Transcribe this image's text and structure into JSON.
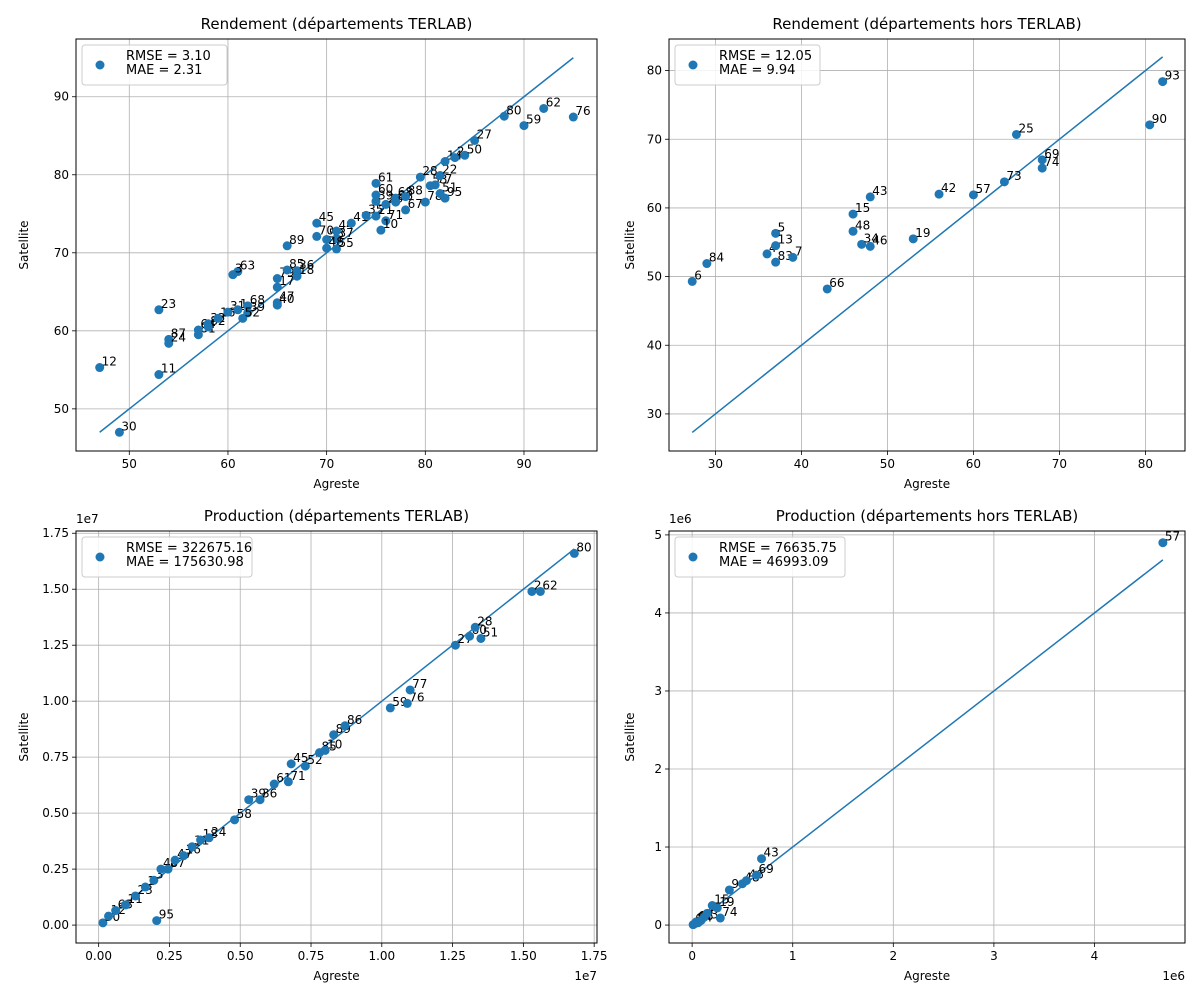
{
  "chart_data": [
    {
      "type": "scatter",
      "title": "Rendement (départements TERLAB)",
      "xlabel": "Agreste",
      "ylabel": "Satellite",
      "xlim": [
        44.6,
        97.4
      ],
      "ylim": [
        44.6,
        97.4
      ],
      "xticks": [
        "50",
        "60",
        "70",
        "80",
        "90"
      ],
      "yticks": [
        "50",
        "60",
        "70",
        "80",
        "90"
      ],
      "grid": true,
      "legend_position": "upper-left",
      "metrics": [
        "RMSE = 3.10",
        "MAE = 2.31"
      ],
      "color": "#1f77b4",
      "identity_line": [
        47,
        95
      ],
      "points": [
        {
          "label": "12",
          "x": 47,
          "y": 55.3
        },
        {
          "label": "30",
          "x": 49,
          "y": 47
        },
        {
          "label": "11",
          "x": 53,
          "y": 54.4
        },
        {
          "label": "23",
          "x": 53,
          "y": 62.7
        },
        {
          "label": "87",
          "x": 54,
          "y": 58.9
        },
        {
          "label": "24",
          "x": 54,
          "y": 58.4
        },
        {
          "label": "81",
          "x": 57,
          "y": 59.5
        },
        {
          "label": "64",
          "x": 57,
          "y": 60.1
        },
        {
          "label": "32",
          "x": 58,
          "y": 60.9
        },
        {
          "label": "82",
          "x": 58,
          "y": 60.5
        },
        {
          "label": "16",
          "x": 59,
          "y": 61.6
        },
        {
          "label": "31",
          "x": 60,
          "y": 62.4
        },
        {
          "label": "63",
          "x": 61,
          "y": 67.6
        },
        {
          "label": "3",
          "x": 60.5,
          "y": 67.2
        },
        {
          "label": "1",
          "x": 61,
          "y": 62.7
        },
        {
          "label": "68",
          "x": 62,
          "y": 63.2
        },
        {
          "label": "39",
          "x": 62,
          "y": 62.3
        },
        {
          "label": "52",
          "x": 61.5,
          "y": 61.6
        },
        {
          "label": "47",
          "x": 65,
          "y": 63.6
        },
        {
          "label": "40",
          "x": 65,
          "y": 63.3
        },
        {
          "label": "17",
          "x": 65,
          "y": 65.6
        },
        {
          "label": "79",
          "x": 65,
          "y": 66.7
        },
        {
          "label": "85",
          "x": 66,
          "y": 67.8
        },
        {
          "label": "18",
          "x": 67,
          "y": 67
        },
        {
          "label": "36",
          "x": 67,
          "y": 67.7
        },
        {
          "label": "89",
          "x": 66,
          "y": 70.9
        },
        {
          "label": "45",
          "x": 69,
          "y": 73.8
        },
        {
          "label": "70",
          "x": 69,
          "y": 72.1
        },
        {
          "label": "58",
          "x": 70,
          "y": 71.7
        },
        {
          "label": "37",
          "x": 71,
          "y": 71.8
        },
        {
          "label": "48",
          "x": 70,
          "y": 70.6
        },
        {
          "label": "55",
          "x": 71,
          "y": 70.5
        },
        {
          "label": "44",
          "x": 71,
          "y": 72.8
        },
        {
          "label": "41",
          "x": 72.5,
          "y": 73.8
        },
        {
          "label": "35",
          "x": 74,
          "y": 74.8
        },
        {
          "label": "21",
          "x": 75,
          "y": 74.7
        },
        {
          "label": "60",
          "x": 75,
          "y": 77.4
        },
        {
          "label": "61",
          "x": 75,
          "y": 78.9
        },
        {
          "label": "39",
          "x": 75,
          "y": 76.6
        },
        {
          "label": "71",
          "x": 76,
          "y": 74.1
        },
        {
          "label": "10",
          "x": 75.5,
          "y": 72.9
        },
        {
          "label": "26",
          "x": 76,
          "y": 76.2
        },
        {
          "label": "68",
          "x": 77,
          "y": 77
        },
        {
          "label": "86",
          "x": 77,
          "y": 76.5
        },
        {
          "label": "88",
          "x": 78,
          "y": 77.2
        },
        {
          "label": "67",
          "x": 78,
          "y": 75.5
        },
        {
          "label": "28",
          "x": 79.5,
          "y": 79.7
        },
        {
          "label": "78",
          "x": 80,
          "y": 76.5
        },
        {
          "label": "53",
          "x": 80.5,
          "y": 78.6
        },
        {
          "label": "77",
          "x": 81,
          "y": 78.7
        },
        {
          "label": "22",
          "x": 81.5,
          "y": 79.9
        },
        {
          "label": "51",
          "x": 81.5,
          "y": 77.6
        },
        {
          "label": "95",
          "x": 82,
          "y": 77
        },
        {
          "label": "14",
          "x": 82,
          "y": 81.7
        },
        {
          "label": "2",
          "x": 83,
          "y": 82.2
        },
        {
          "label": "50",
          "x": 84,
          "y": 82.5
        },
        {
          "label": "27",
          "x": 85,
          "y": 84.4
        },
        {
          "label": "80",
          "x": 88,
          "y": 87.5
        },
        {
          "label": "59",
          "x": 90,
          "y": 86.3
        },
        {
          "label": "62",
          "x": 92,
          "y": 88.5
        },
        {
          "label": "76",
          "x": 95,
          "y": 87.4
        }
      ]
    },
    {
      "type": "scatter",
      "title": "Rendement (départements hors TERLAB)",
      "xlabel": "Agreste",
      "ylabel": "Satellite",
      "xlim": [
        24.6,
        84.6
      ],
      "ylim": [
        24.6,
        84.6
      ],
      "xticks": [
        "30",
        "40",
        "50",
        "60",
        "70",
        "80"
      ],
      "yticks": [
        "30",
        "40",
        "50",
        "60",
        "70",
        "80"
      ],
      "grid": true,
      "legend_position": "upper-left",
      "metrics": [
        "RMSE = 12.05",
        "MAE = 9.94"
      ],
      "color": "#1f77b4",
      "identity_line": [
        27.3,
        82
      ],
      "points": [
        {
          "label": "6",
          "x": 27.3,
          "y": 49.3
        },
        {
          "label": "84",
          "x": 29,
          "y": 51.9
        },
        {
          "label": "4",
          "x": 36,
          "y": 53.3
        },
        {
          "label": "5",
          "x": 37,
          "y": 56.3
        },
        {
          "label": "13",
          "x": 37,
          "y": 54.5
        },
        {
          "label": "83",
          "x": 37,
          "y": 52.1
        },
        {
          "label": "7",
          "x": 39,
          "y": 52.8
        },
        {
          "label": "66",
          "x": 43,
          "y": 48.2
        },
        {
          "label": "15",
          "x": 46,
          "y": 59.1
        },
        {
          "label": "48",
          "x": 46,
          "y": 56.6
        },
        {
          "label": "34",
          "x": 47,
          "y": 54.7
        },
        {
          "label": "46",
          "x": 48,
          "y": 54.4
        },
        {
          "label": "43",
          "x": 48,
          "y": 61.6
        },
        {
          "label": "19",
          "x": 53,
          "y": 55.5
        },
        {
          "label": "42",
          "x": 56,
          "y": 62
        },
        {
          "label": "57",
          "x": 60,
          "y": 61.9
        },
        {
          "label": "73",
          "x": 63.6,
          "y": 63.8
        },
        {
          "label": "25",
          "x": 65,
          "y": 70.7
        },
        {
          "label": "69",
          "x": 68,
          "y": 67
        },
        {
          "label": "74",
          "x": 68,
          "y": 65.8
        },
        {
          "label": "90",
          "x": 80.5,
          "y": 72.1
        },
        {
          "label": "93",
          "x": 82,
          "y": 78.4
        }
      ]
    },
    {
      "type": "scatter",
      "title": "Production (départements TERLAB)",
      "xlabel": "Agreste",
      "ylabel": "Satellite",
      "x_scale_label": "1e7",
      "y_scale_label": "1e7",
      "xlim": [
        -800000,
        17600000
      ],
      "ylim": [
        -800000,
        17600000
      ],
      "xticks": [
        "0.00",
        "0.25",
        "0.50",
        "0.75",
        "1.00",
        "1.25",
        "1.50",
        "1.75"
      ],
      "yticks": [
        "0.00",
        "0.25",
        "0.50",
        "0.75",
        "1.00",
        "1.25",
        "1.50",
        "1.75"
      ],
      "grid": true,
      "legend_position": "upper-left",
      "metrics": [
        "RMSE = 322675.16",
        "MAE = 175630.98"
      ],
      "color": "#1f77b4",
      "identity_line": [
        50000,
        16800000
      ],
      "points": [
        {
          "label": "30",
          "x": 150000,
          "y": 100000
        },
        {
          "label": "12",
          "x": 350000,
          "y": 400000
        },
        {
          "label": "63",
          "x": 600000,
          "y": 650000
        },
        {
          "label": "11",
          "x": 950000,
          "y": 900000
        },
        {
          "label": "23",
          "x": 1300000,
          "y": 1300000
        },
        {
          "label": "1",
          "x": 1650000,
          "y": 1700000
        },
        {
          "label": "3",
          "x": 1950000,
          "y": 2000000
        },
        {
          "label": "95",
          "x": 2050000,
          "y": 200000
        },
        {
          "label": "40",
          "x": 2200000,
          "y": 2500000
        },
        {
          "label": "87",
          "x": 2450000,
          "y": 2500000
        },
        {
          "label": "47",
          "x": 2700000,
          "y": 2900000
        },
        {
          "label": "16",
          "x": 3000000,
          "y": 3100000
        },
        {
          "label": "31",
          "x": 3300000,
          "y": 3500000
        },
        {
          "label": "18",
          "x": 3600000,
          "y": 3800000
        },
        {
          "label": "24",
          "x": 3900000,
          "y": 3900000
        },
        {
          "label": "58",
          "x": 4800000,
          "y": 4700000
        },
        {
          "label": "39",
          "x": 5300000,
          "y": 5600000
        },
        {
          "label": "36",
          "x": 5700000,
          "y": 5600000
        },
        {
          "label": "61",
          "x": 6200000,
          "y": 6300000
        },
        {
          "label": "71",
          "x": 6700000,
          "y": 6400000
        },
        {
          "label": "45",
          "x": 6800000,
          "y": 7200000
        },
        {
          "label": "52",
          "x": 7300000,
          "y": 7100000
        },
        {
          "label": "85",
          "x": 7800000,
          "y": 7700000
        },
        {
          "label": "10",
          "x": 8000000,
          "y": 7800000
        },
        {
          "label": "89",
          "x": 8300000,
          "y": 8500000
        },
        {
          "label": "86",
          "x": 8700000,
          "y": 8900000
        },
        {
          "label": "59",
          "x": 10300000,
          "y": 9700000
        },
        {
          "label": "76",
          "x": 10900000,
          "y": 9900000
        },
        {
          "label": "77",
          "x": 11000000,
          "y": 10500000
        },
        {
          "label": "27",
          "x": 12600000,
          "y": 12500000
        },
        {
          "label": "60",
          "x": 13100000,
          "y": 12900000
        },
        {
          "label": "28",
          "x": 13300000,
          "y": 13300000
        },
        {
          "label": "51",
          "x": 13500000,
          "y": 12800000
        },
        {
          "label": "2",
          "x": 15300000,
          "y": 14900000
        },
        {
          "label": "62",
          "x": 15600000,
          "y": 14900000
        },
        {
          "label": "80",
          "x": 16800000,
          "y": 16600000
        }
      ]
    },
    {
      "type": "scatter",
      "title": "Production (départements hors TERLAB)",
      "xlabel": "Agreste",
      "ylabel": "Satellite",
      "x_scale_label": "1e6",
      "y_scale_label": "1e6",
      "xlim": [
        -230000,
        4900000
      ],
      "ylim": [
        -230000,
        5050000
      ],
      "xticks": [
        "0",
        "1",
        "2",
        "3",
        "4"
      ],
      "yticks": [
        "0",
        "1",
        "2",
        "3",
        "4",
        "5"
      ],
      "grid": true,
      "legend_position": "upper-left",
      "metrics": [
        "RMSE = 76635.75",
        "MAE = 46993.09"
      ],
      "color": "#1f77b4",
      "identity_line": [
        10000,
        4680000
      ],
      "points": [
        {
          "label": "6",
          "x": 10000,
          "y": 5000
        },
        {
          "label": "84",
          "x": 30000,
          "y": 20000
        },
        {
          "label": "66",
          "x": 40000,
          "y": 40000
        },
        {
          "label": "5",
          "x": 60000,
          "y": 30000
        },
        {
          "label": "13",
          "x": 90000,
          "y": 60000
        },
        {
          "label": "4",
          "x": 120000,
          "y": 100000
        },
        {
          "label": "7",
          "x": 150000,
          "y": 150000
        },
        {
          "label": "74",
          "x": 280000,
          "y": 90000
        },
        {
          "label": "15",
          "x": 200000,
          "y": 250000
        },
        {
          "label": "19",
          "x": 250000,
          "y": 220000
        },
        {
          "label": "9",
          "x": 370000,
          "y": 450000
        },
        {
          "label": "48",
          "x": 500000,
          "y": 530000
        },
        {
          "label": "46",
          "x": 540000,
          "y": 570000
        },
        {
          "label": "69",
          "x": 640000,
          "y": 640000
        },
        {
          "label": "43",
          "x": 690000,
          "y": 850000
        },
        {
          "label": "57",
          "x": 4680000,
          "y": 4900000
        }
      ]
    }
  ]
}
